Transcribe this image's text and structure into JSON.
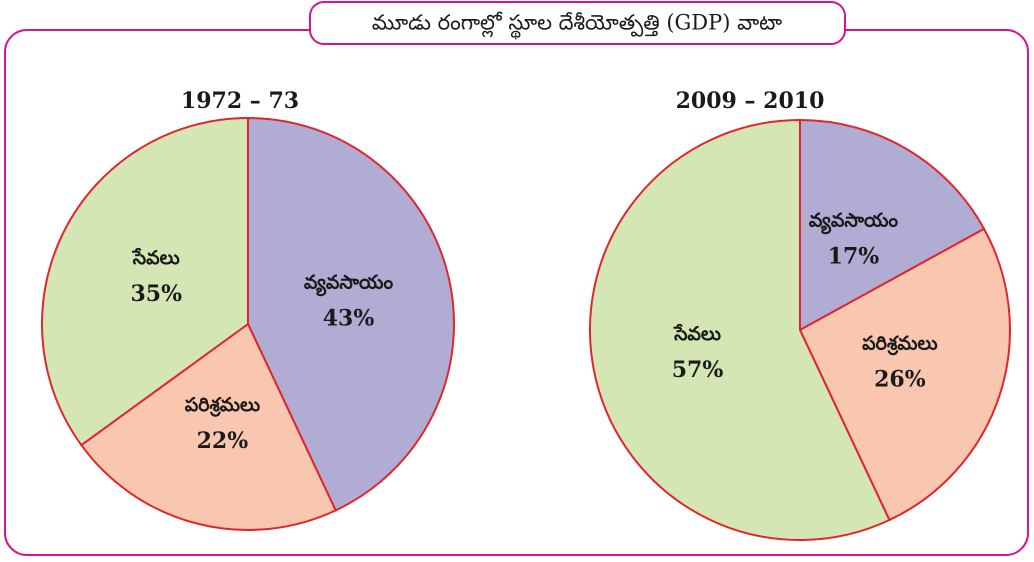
{
  "title": "మూడు రంగాల్లో స్థూల దేశీయోత్పత్తి (GDP) వాటా",
  "chart_data": [
    {
      "type": "pie",
      "title": "1972 – 73",
      "categories": [
        "వ్యవసాయం",
        "పరిశ్రమలు",
        "సేవలు"
      ],
      "values": [
        43,
        22,
        35
      ],
      "value_labels": [
        "43%",
        "22%",
        "35%"
      ],
      "colors": [
        "#b1acd3",
        "#f9c6b0",
        "#d5e6b5"
      ]
    },
    {
      "type": "pie",
      "title": "2009 – 2010",
      "categories": [
        "వ్యవసాయం",
        "పరిశ్రమలు",
        "సేవలు"
      ],
      "values": [
        17,
        26,
        57
      ],
      "value_labels": [
        "17%",
        "26%",
        "57%"
      ],
      "colors": [
        "#b1acd3",
        "#f9c6b0",
        "#d5e6b5"
      ]
    }
  ]
}
